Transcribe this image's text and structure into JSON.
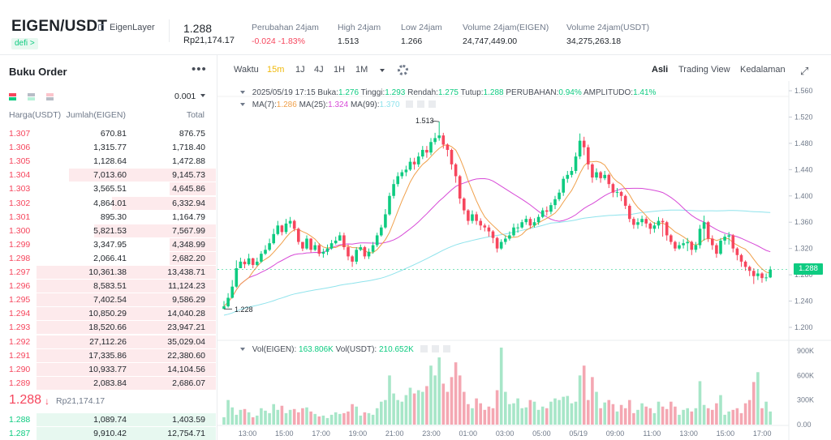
{
  "header": {
    "pair": "EIGEN/USDT",
    "project": "EigenLayer",
    "tag": "defi >",
    "price": "1.288",
    "price_idr": "Rp21,174.17",
    "stats": [
      {
        "label": "Perubahan 24jam",
        "value": "-0.024 -1.83%",
        "color": "#f6465d"
      },
      {
        "label": "High 24jam",
        "value": "1.513"
      },
      {
        "label": "Low 24jam",
        "value": "1.266"
      },
      {
        "label": "Volume 24jam(EIGEN)",
        "value": "24,747,449.00"
      },
      {
        "label": "Volume 24jam(USDT)",
        "value": "34,275,263.18"
      }
    ]
  },
  "orderbook": {
    "title": "Buku Order",
    "more_icon": "more-horizontal-icon",
    "precision": "0.001",
    "headers": {
      "price": "Harga(USDT)",
      "amount": "Jumlah(EIGEN)",
      "total": "Total"
    },
    "asks": [
      {
        "price": "1.307",
        "amount": "670.81",
        "total": "876.75",
        "depth": 0.0
      },
      {
        "price": "1.306",
        "amount": "1,315.77",
        "total": "1,718.40",
        "depth": 0.0
      },
      {
        "price": "1.305",
        "amount": "1,128.64",
        "total": "1,472.88",
        "depth": 0.0
      },
      {
        "price": "1.304",
        "amount": "7,013.60",
        "total": "9,145.73",
        "depth": 0.82
      },
      {
        "price": "1.303",
        "amount": "3,565.51",
        "total": "4,645.86",
        "depth": 0.26
      },
      {
        "price": "1.302",
        "amount": "4,864.01",
        "total": "6,332.94",
        "depth": 0.58
      },
      {
        "price": "1.301",
        "amount": "895.30",
        "total": "1,164.79",
        "depth": 0.0
      },
      {
        "price": "1.300",
        "amount": "5,821.53",
        "total": "7,567.99",
        "depth": 0.68
      },
      {
        "price": "1.299",
        "amount": "3,347.95",
        "total": "4,348.99",
        "depth": 0.26
      },
      {
        "price": "1.298",
        "amount": "2,066.41",
        "total": "2,682.20",
        "depth": 0.26
      },
      {
        "price": "1.297",
        "amount": "10,361.38",
        "total": "13,438.71",
        "depth": 1.0
      },
      {
        "price": "1.296",
        "amount": "8,583.51",
        "total": "11,124.23",
        "depth": 1.0
      },
      {
        "price": "1.295",
        "amount": "7,402.54",
        "total": "9,586.29",
        "depth": 1.0
      },
      {
        "price": "1.294",
        "amount": "10,850.29",
        "total": "14,040.28",
        "depth": 1.0
      },
      {
        "price": "1.293",
        "amount": "18,520.66",
        "total": "23,947.21",
        "depth": 1.0
      },
      {
        "price": "1.292",
        "amount": "27,112.26",
        "total": "35,029.04",
        "depth": 1.0
      },
      {
        "price": "1.291",
        "amount": "17,335.86",
        "total": "22,380.60",
        "depth": 1.0
      },
      {
        "price": "1.290",
        "amount": "10,933.77",
        "total": "14,104.56",
        "depth": 1.0
      },
      {
        "price": "1.289",
        "amount": "2,083.84",
        "total": "2,686.07",
        "depth": 1.0
      }
    ],
    "mid": {
      "price": "1.288",
      "arrow": "↓",
      "sub": "Rp21,174.17"
    },
    "bids": [
      {
        "price": "1.288",
        "amount": "1,089.74",
        "total": "1,403.59",
        "depth": 1.0
      },
      {
        "price": "1.287",
        "amount": "9,910.42",
        "total": "12,754.71",
        "depth": 1.0
      }
    ]
  },
  "toolbar": {
    "time_label": "Waktu",
    "intervals": [
      "15m",
      "1J",
      "4J",
      "1H",
      "1M"
    ],
    "active_interval": "15m",
    "views": [
      "Asli",
      "Trading View",
      "Kedalaman"
    ],
    "active_view": "Asli",
    "settings_icon": "gear-icon",
    "expand_icon": "expand-icon"
  },
  "info_line": {
    "date": "2025/05/19 17:15",
    "items": [
      {
        "k": "Buka:",
        "v": "1.276"
      },
      {
        "k": "Tinggi:",
        "v": "1.293"
      },
      {
        "k": "Rendah:",
        "v": "1.275"
      },
      {
        "k": "Tutup:",
        "v": "1.288"
      },
      {
        "k": "PERUBAHAN:",
        "v": "0.94%"
      },
      {
        "k": "AMPLITUDO:",
        "v": "1.41%"
      }
    ]
  },
  "ma_line": [
    {
      "k": "MA(7):",
      "v": "1.286",
      "color": "#f0a04b"
    },
    {
      "k": "MA(25):",
      "v": "1.324",
      "color": "#d74ad7"
    },
    {
      "k": "MA(99):",
      "v": "1.370",
      "color": "#8fe3ec"
    }
  ],
  "vol_line": [
    {
      "k": "Vol(EIGEN):",
      "v": "163.806K"
    },
    {
      "k": "Vol(USDT):",
      "v": "210.652K"
    }
  ],
  "chart_data": {
    "type": "candlestick",
    "price_axis": {
      "min": 1.2,
      "max": 1.56,
      "ticks": [
        "1.560",
        "1.520",
        "1.480",
        "1.440",
        "1.400",
        "1.360",
        "1.320",
        "1.280",
        "1.240",
        "1.200"
      ]
    },
    "volume_axis": {
      "ticks": [
        "900K",
        "600K",
        "300K",
        "0.00"
      ],
      "max": 900000
    },
    "time_labels": [
      "13:00",
      "15:00",
      "17:00",
      "19:00",
      "21:00",
      "23:00",
      "01:00",
      "03:00",
      "05:00",
      "05/19",
      "09:00",
      "11:00",
      "13:00",
      "15:00",
      "17:00"
    ],
    "high_label": "1.513",
    "low_label": "1.228",
    "current_price": "1.288",
    "colors": {
      "up": "#0ecb81",
      "down": "#f6465d",
      "ma7": "#f0a04b",
      "ma25": "#d74ad7",
      "ma99": "#8fe3ec"
    },
    "close": [
      1.232,
      1.245,
      1.262,
      1.29,
      1.3,
      1.296,
      1.305,
      1.295,
      1.3,
      1.312,
      1.318,
      1.328,
      1.342,
      1.355,
      1.345,
      1.358,
      1.362,
      1.35,
      1.33,
      1.32,
      1.335,
      1.318,
      1.325,
      1.312,
      1.315,
      1.32,
      1.328,
      1.332,
      1.34,
      1.322,
      1.308,
      1.3,
      1.318,
      1.322,
      1.308,
      1.315,
      1.325,
      1.34,
      1.352,
      1.372,
      1.4,
      1.418,
      1.43,
      1.436,
      1.44,
      1.452,
      1.448,
      1.46,
      1.47,
      1.466,
      1.482,
      1.488,
      1.492,
      1.478,
      1.47,
      1.448,
      1.43,
      1.396,
      1.378,
      1.362,
      1.372,
      1.362,
      1.355,
      1.352,
      1.346,
      1.336,
      1.32,
      1.33,
      1.335,
      1.34,
      1.352,
      1.352,
      1.36,
      1.365,
      1.355,
      1.36,
      1.368,
      1.378,
      1.376,
      1.386,
      1.395,
      1.405,
      1.426,
      1.432,
      1.438,
      1.46,
      1.484,
      1.474,
      1.448,
      1.428,
      1.436,
      1.427,
      1.432,
      1.418,
      1.405,
      1.406,
      1.4,
      1.385,
      1.365,
      1.356,
      1.36,
      1.365,
      1.358,
      1.35,
      1.355,
      1.362,
      1.36,
      1.34,
      1.33,
      1.32,
      1.325,
      1.328,
      1.33,
      1.318,
      1.325,
      1.35,
      1.36,
      1.335,
      1.325,
      1.312,
      1.332,
      1.338,
      1.34,
      1.32,
      1.31,
      1.3,
      1.292,
      1.286,
      1.278,
      1.282,
      1.275,
      1.276,
      1.288
    ],
    "high": [
      1.24,
      1.252,
      1.272,
      1.302,
      1.306,
      1.304,
      1.312,
      1.306,
      1.306,
      1.316,
      1.325,
      1.335,
      1.35,
      1.362,
      1.356,
      1.365,
      1.368,
      1.364,
      1.352,
      1.33,
      1.34,
      1.336,
      1.33,
      1.328,
      1.32,
      1.326,
      1.333,
      1.338,
      1.345,
      1.344,
      1.326,
      1.31,
      1.322,
      1.326,
      1.324,
      1.32,
      1.33,
      1.344,
      1.356,
      1.38,
      1.405,
      1.425,
      1.436,
      1.44,
      1.446,
      1.458,
      1.458,
      1.466,
      1.476,
      1.476,
      1.488,
      1.496,
      1.513,
      1.496,
      1.48,
      1.472,
      1.45,
      1.432,
      1.398,
      1.38,
      1.378,
      1.376,
      1.366,
      1.358,
      1.356,
      1.348,
      1.338,
      1.334,
      1.34,
      1.346,
      1.358,
      1.358,
      1.364,
      1.37,
      1.368,
      1.366,
      1.372,
      1.382,
      1.384,
      1.39,
      1.4,
      1.41,
      1.43,
      1.438,
      1.444,
      1.466,
      1.495,
      1.49,
      1.478,
      1.45,
      1.442,
      1.438,
      1.438,
      1.434,
      1.42,
      1.412,
      1.408,
      1.402,
      1.388,
      1.368,
      1.366,
      1.37,
      1.368,
      1.36,
      1.36,
      1.368,
      1.366,
      1.362,
      1.342,
      1.332,
      1.33,
      1.334,
      1.336,
      1.332,
      1.33,
      1.356,
      1.37,
      1.362,
      1.34,
      1.328,
      1.336,
      1.342,
      1.345,
      1.342,
      1.322,
      1.312,
      1.302,
      1.294,
      1.29,
      1.288,
      1.284,
      1.282,
      1.293
    ],
    "low": [
      1.228,
      1.23,
      1.244,
      1.26,
      1.292,
      1.29,
      1.294,
      1.29,
      1.293,
      1.298,
      1.31,
      1.316,
      1.326,
      1.34,
      1.34,
      1.342,
      1.352,
      1.346,
      1.326,
      1.316,
      1.318,
      1.314,
      1.316,
      1.308,
      1.306,
      1.31,
      1.318,
      1.326,
      1.332,
      1.318,
      1.302,
      1.292,
      1.296,
      1.316,
      1.304,
      1.304,
      1.312,
      1.322,
      1.338,
      1.35,
      1.37,
      1.396,
      1.414,
      1.426,
      1.43,
      1.438,
      1.44,
      1.444,
      1.456,
      1.458,
      1.462,
      1.478,
      1.484,
      1.472,
      1.46,
      1.44,
      1.42,
      1.388,
      1.372,
      1.356,
      1.358,
      1.356,
      1.348,
      1.346,
      1.338,
      1.328,
      1.314,
      1.318,
      1.326,
      1.332,
      1.338,
      1.344,
      1.35,
      1.356,
      1.35,
      1.352,
      1.356,
      1.366,
      1.37,
      1.372,
      1.38,
      1.392,
      1.4,
      1.42,
      1.428,
      1.434,
      1.456,
      1.462,
      1.44,
      1.42,
      1.424,
      1.42,
      1.424,
      1.412,
      1.398,
      1.398,
      1.392,
      1.38,
      1.36,
      1.35,
      1.35,
      1.354,
      1.352,
      1.342,
      1.344,
      1.35,
      1.338,
      1.332,
      1.326,
      1.316,
      1.318,
      1.32,
      1.316,
      1.31,
      1.314,
      1.32,
      1.332,
      1.33,
      1.318,
      1.306,
      1.31,
      1.326,
      1.326,
      1.314,
      1.302,
      1.292,
      1.286,
      1.278,
      1.266,
      1.272,
      1.268,
      1.27,
      1.275
    ],
    "volume": [
      90,
      300,
      210,
      120,
      180,
      190,
      150,
      90,
      110,
      200,
      170,
      140,
      250,
      180,
      230,
      140,
      180,
      190,
      150,
      200,
      210,
      160,
      130,
      100,
      110,
      80,
      120,
      150,
      130,
      140,
      160,
      250,
      220,
      110,
      150,
      140,
      120,
      200,
      280,
      300,
      600,
      380,
      300,
      280,
      360,
      450,
      380,
      420,
      400,
      470,
      720,
      600,
      820,
      500,
      400,
      580,
      760,
      600,
      400,
      250,
      200,
      320,
      260,
      180,
      220,
      200,
      420,
      940,
      400,
      250,
      260,
      320,
      200,
      210,
      300,
      280,
      180,
      220,
      200,
      280,
      320,
      300,
      340,
      350,
      260,
      280,
      600,
      720,
      300,
      580,
      400,
      200,
      270,
      300,
      250,
      160,
      240,
      200,
      300,
      140,
      180,
      260,
      220,
      200,
      140,
      280,
      220,
      190,
      280,
      220,
      120,
      180,
      200,
      160,
      200,
      530,
      240,
      200,
      180,
      260,
      360,
      120,
      160,
      180,
      200,
      140,
      260,
      300,
      520,
      640,
      200,
      280,
      160
    ]
  }
}
